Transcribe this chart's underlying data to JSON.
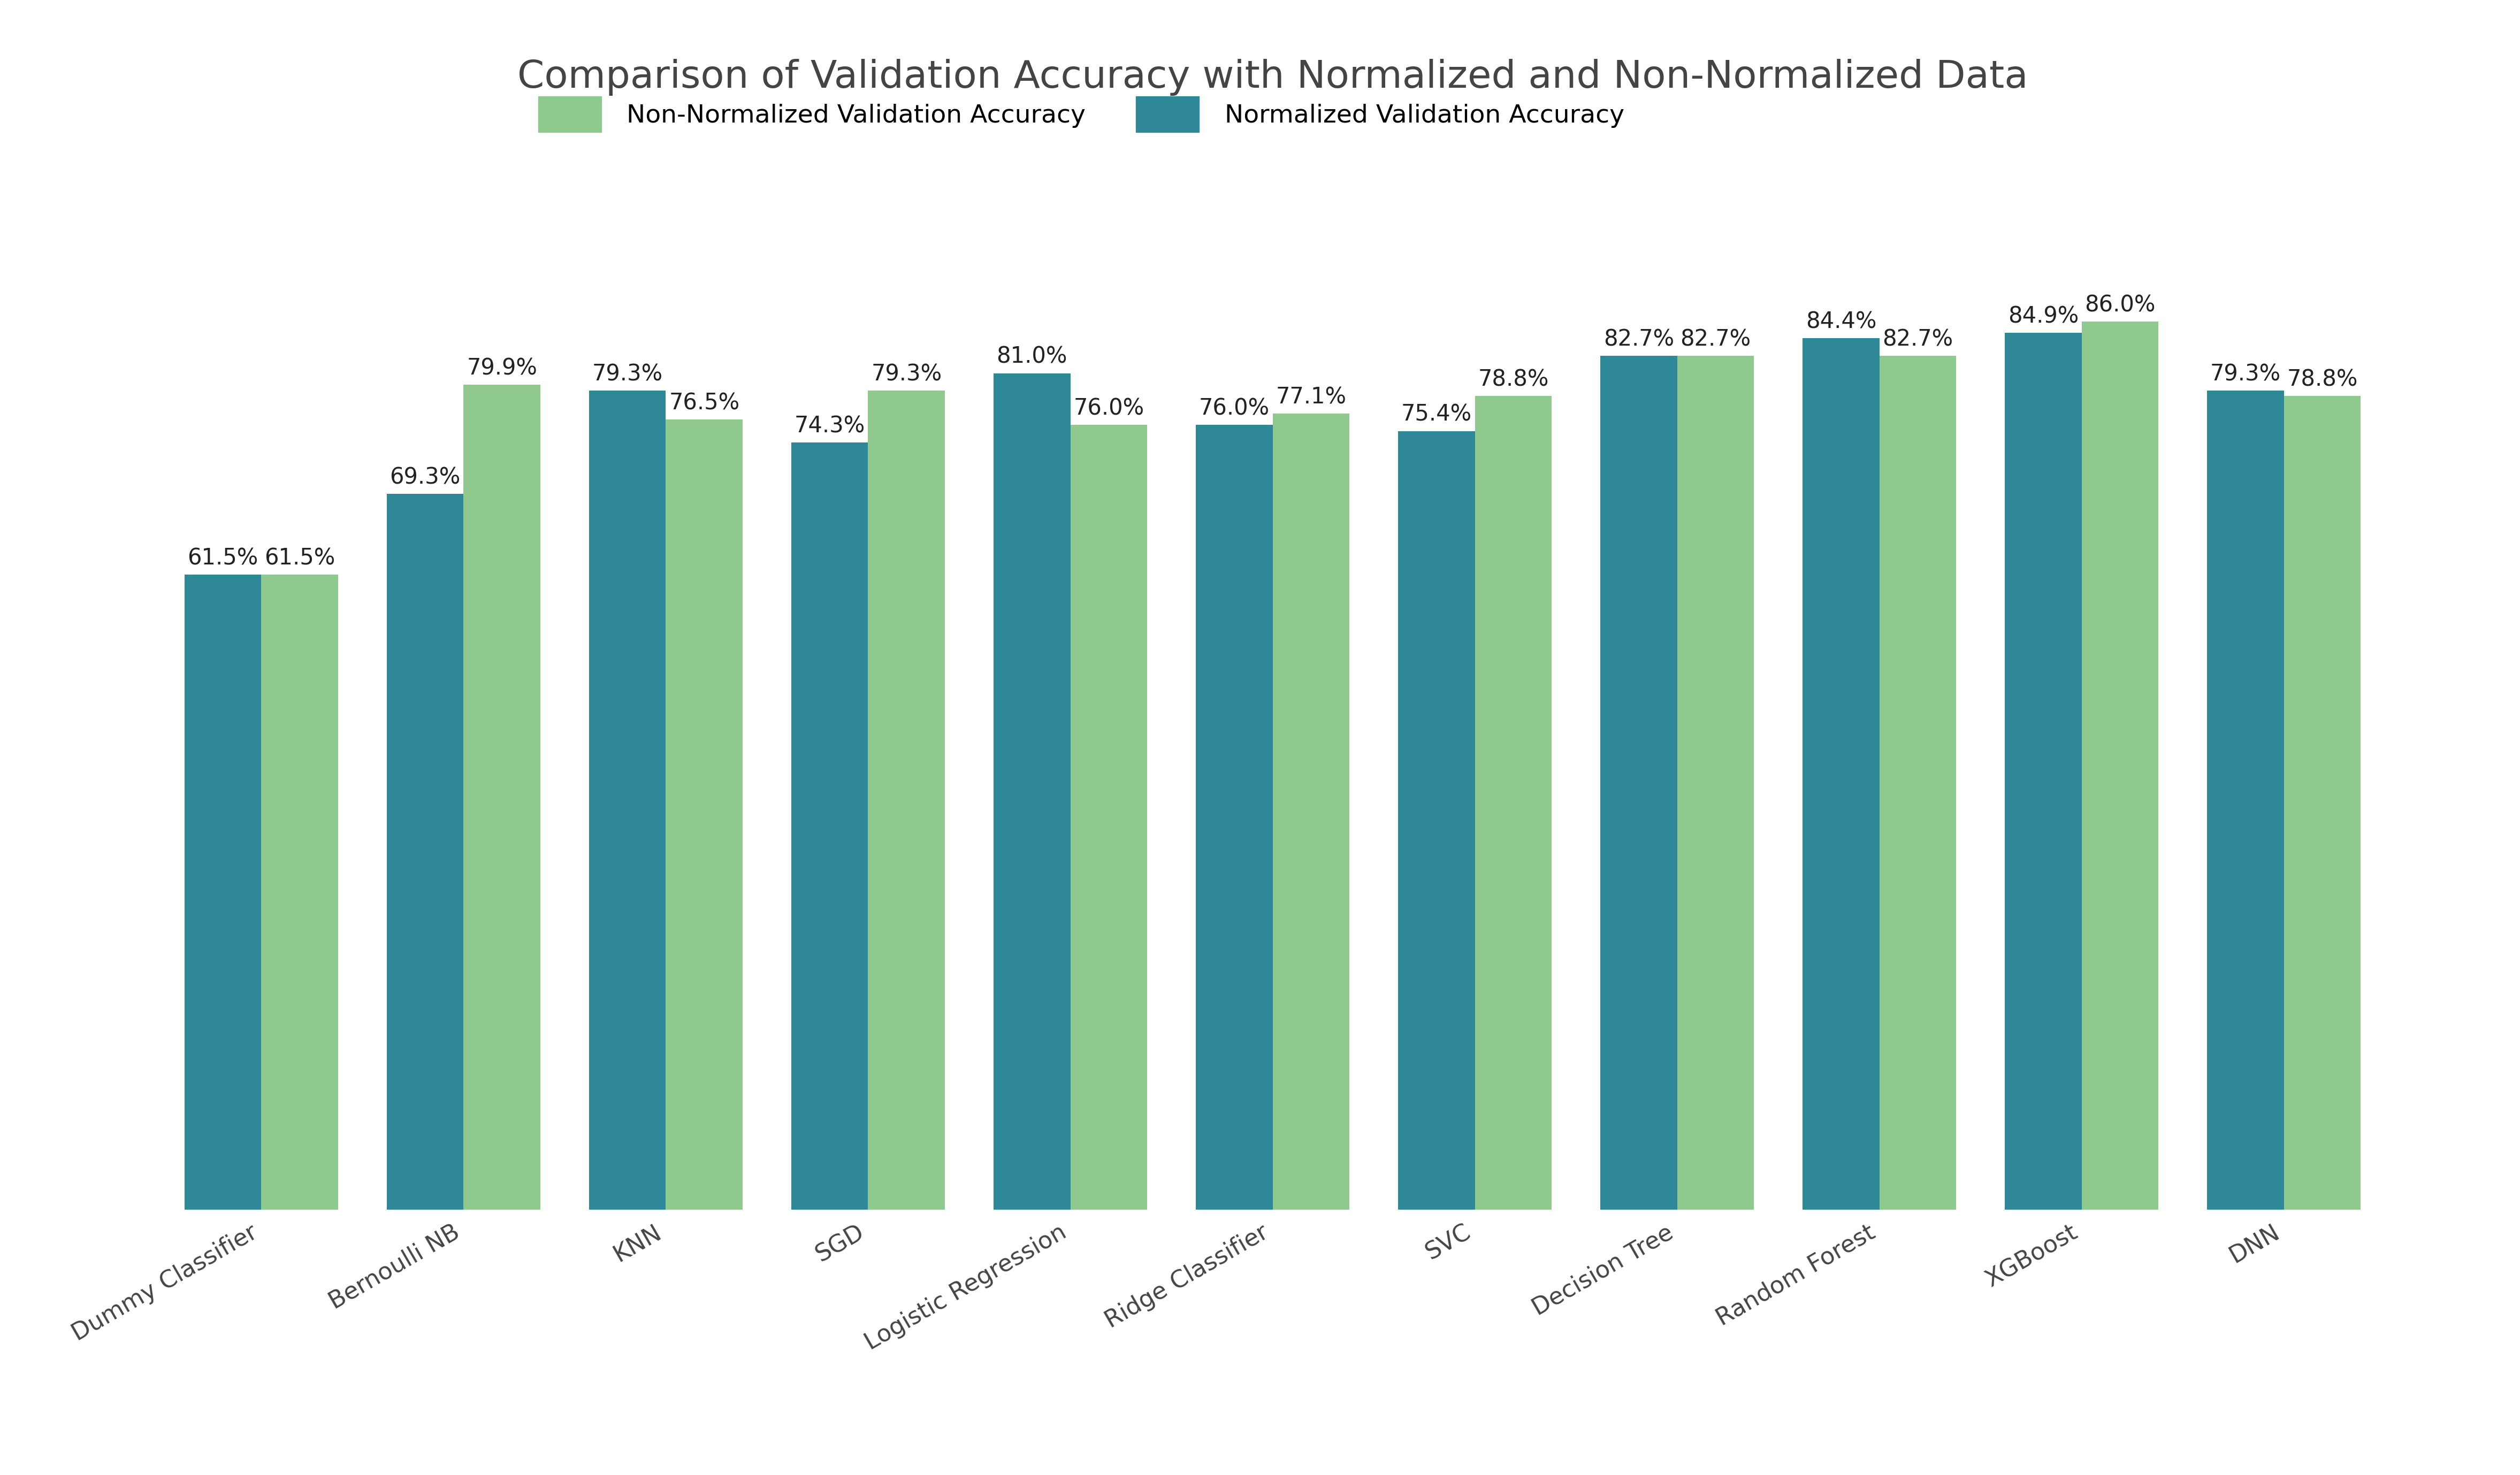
{
  "title": "Comparison of Validation Accuracy with Normalized and Non-Normalized Data",
  "categories": [
    "Dummy Classifier",
    "Bernoulli NB",
    "KNN",
    "SGD",
    "Logistic Regression",
    "Ridge Classifier",
    "SVC",
    "Decision Tree",
    "Random Forest",
    "XGBoost",
    "DNN"
  ],
  "non_normalized": [
    61.5,
    79.9,
    76.5,
    79.3,
    76.0,
    77.1,
    78.8,
    82.7,
    82.7,
    86.0,
    78.8
  ],
  "normalized": [
    61.5,
    69.3,
    79.3,
    74.3,
    81.0,
    76.0,
    75.4,
    82.7,
    84.4,
    84.9,
    79.3
  ],
  "color_non_normalized": "#90C98E",
  "color_normalized": "#2E8898",
  "label_non_normalized": "Non-Normalized Validation Accuracy",
  "label_normalized": "Normalized Validation Accuracy",
  "bar_width": 0.38,
  "ylim": [
    0,
    100
  ],
  "title_fontsize": 52,
  "tick_fontsize": 32,
  "annotation_fontsize": 30,
  "legend_fontsize": 34,
  "background_color": "#ffffff"
}
